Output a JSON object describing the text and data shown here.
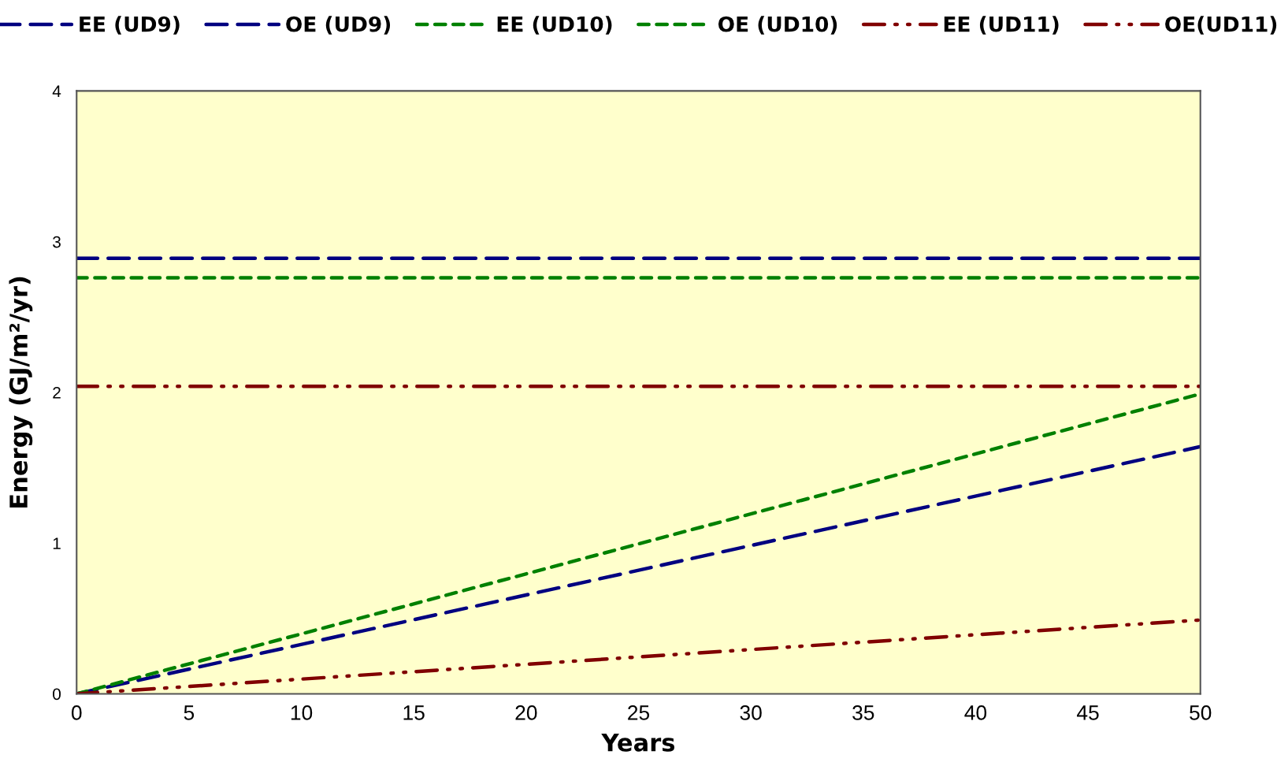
{
  "chart_data": {
    "type": "line",
    "xlabel": "Years",
    "ylabel": "Energy (GJ/m²/yr)",
    "x": [
      0,
      50
    ],
    "xlim": [
      0,
      50
    ],
    "xticks": [
      0,
      5,
      10,
      15,
      20,
      25,
      30,
      35,
      40,
      45,
      50
    ],
    "ylim": [
      0,
      4
    ],
    "yticks": [
      0,
      1,
      2,
      3,
      4
    ],
    "grid": false,
    "legend": "top",
    "marker": "none",
    "series": [
      {
        "name": "EE (UD9)",
        "color": "#000080",
        "line_style": "dashed",
        "values": [
          2.89,
          2.89
        ]
      },
      {
        "name": "OE (UD9)",
        "color": "#000080",
        "line_style": "dashed",
        "values": [
          0,
          1.64
        ]
      },
      {
        "name": "EE (UD10)",
        "color": "#008000",
        "line_style": "dotted",
        "values": [
          2.76,
          2.76
        ]
      },
      {
        "name": "OE (UD10)",
        "color": "#008000",
        "line_style": "dotted",
        "values": [
          0,
          1.99
        ]
      },
      {
        "name": "EE (UD11)",
        "color": "#800000",
        "line_style": "dashdot",
        "values": [
          2.04,
          2.04
        ]
      },
      {
        "name": "OE(UD11)",
        "color": "#800000",
        "line_style": "dashdot",
        "values": [
          0,
          0.49
        ]
      }
    ]
  }
}
